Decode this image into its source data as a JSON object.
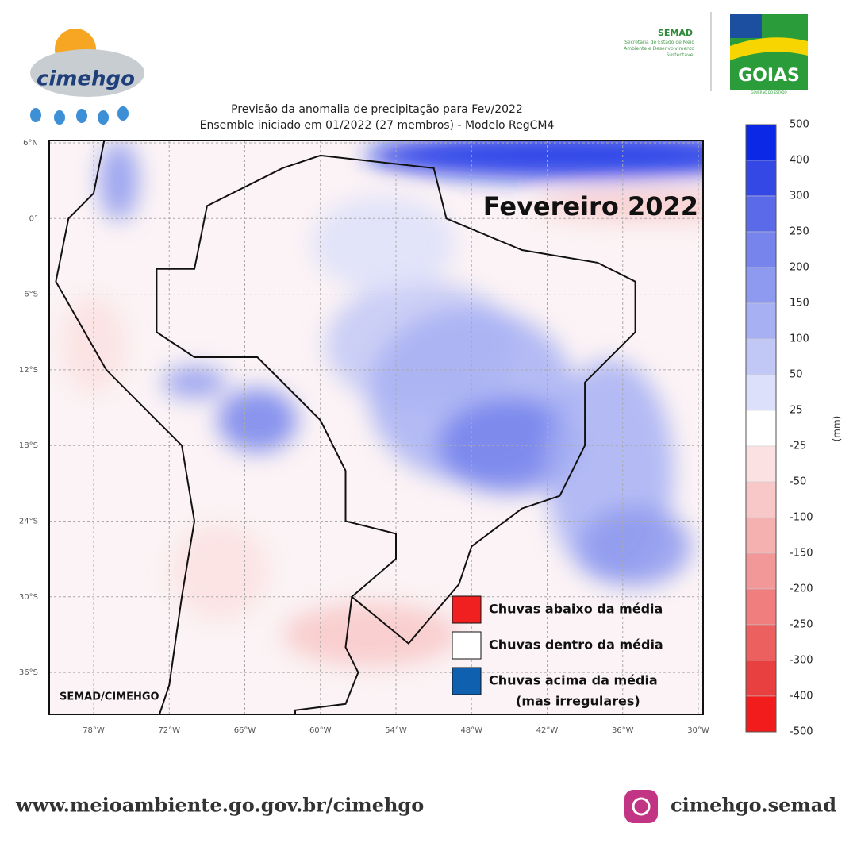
{
  "header": {
    "logo_left": "cimehgo",
    "semad": "SEMAD",
    "semad_sub": "Secretaria de Estado de Meio Ambiente e Desenvolvimento Sustentável",
    "logo_right": "GOIAS",
    "logo_right_sub": "GOVERNO DO ESTADO"
  },
  "map": {
    "title": "Previsão da anomalia de precipitação para Fev/2022",
    "subtitle": "Ensemble iniciado em 01/2022 (27 membros) - Modelo RegCM4",
    "annotation": "Fevereiro 2022",
    "credit": "SEMAD/CIMEHGO",
    "lat_ticks": [
      {
        "value": 6,
        "label": "6°N"
      },
      {
        "value": 0,
        "label": "0°"
      },
      {
        "value": -6,
        "label": "6°S"
      },
      {
        "value": -12,
        "label": "12°S"
      },
      {
        "value": -18,
        "label": "18°S"
      },
      {
        "value": -24,
        "label": "24°S"
      },
      {
        "value": -30,
        "label": "30°S"
      },
      {
        "value": -36,
        "label": "36°S"
      }
    ],
    "lon_ticks": [
      {
        "value": -78,
        "label": "78°W"
      },
      {
        "value": -72,
        "label": "72°W"
      },
      {
        "value": -66,
        "label": "66°W"
      },
      {
        "value": -60,
        "label": "60°W"
      },
      {
        "value": -54,
        "label": "54°W"
      },
      {
        "value": -48,
        "label": "48°W"
      },
      {
        "value": -42,
        "label": "42°W"
      },
      {
        "value": -36,
        "label": "36°W"
      },
      {
        "value": -30,
        "label": "30°W"
      }
    ],
    "legend": [
      {
        "label": "Chuvas abaixo da média",
        "color": "#f02020"
      },
      {
        "label": "Chuvas dentro da média",
        "color": "#ffffff"
      },
      {
        "label": "Chuvas acima da média",
        "note": "(mas irregulares)",
        "color": "#1060b0"
      }
    ]
  },
  "colorbar": {
    "unit": "(mm)",
    "levels": [
      500,
      400,
      300,
      250,
      200,
      150,
      100,
      50,
      25,
      -25,
      -50,
      -100,
      -150,
      -200,
      -250,
      -300,
      -400,
      -500
    ],
    "colors": [
      "#0a28e6",
      "#3448e6",
      "#5b6ae8",
      "#7684ec",
      "#8e9aef",
      "#a7b0f3",
      "#c2c8f6",
      "#dde0fa",
      "#ffffff",
      "#fbe1e1",
      "#f8c8c8",
      "#f5b0b0",
      "#f39898",
      "#f07e7e",
      "#ec6060",
      "#e84040",
      "#f21c1c"
    ]
  },
  "footer": {
    "url": "www.meioambiente.go.gov.br/cimehgo",
    "instagram": "cimehgo.semad"
  }
}
